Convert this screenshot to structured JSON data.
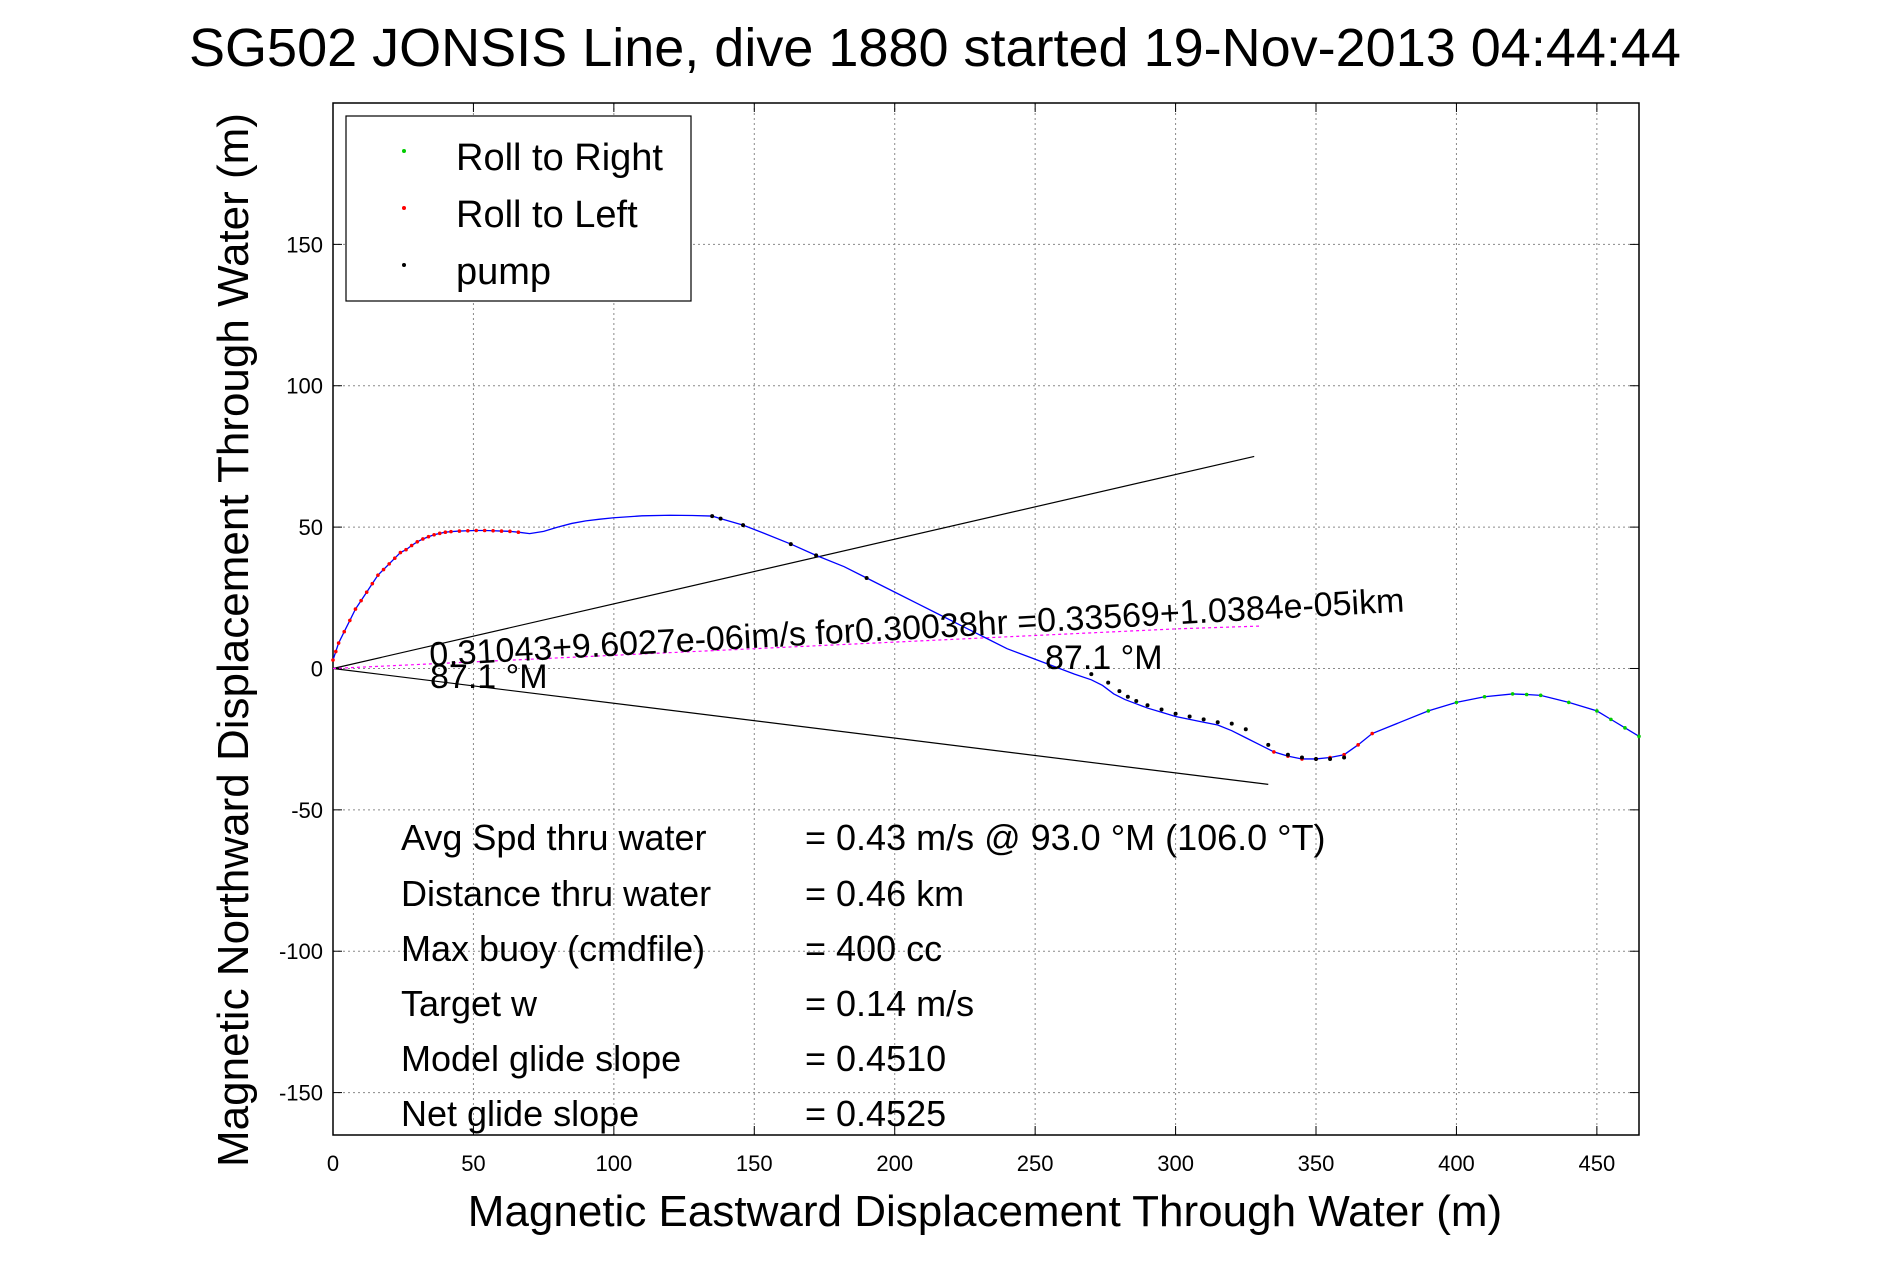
{
  "chart_data": {
    "type": "line",
    "title": "SG502 JONSIS Line, dive 1880 started 19-Nov-2013 04:44:44",
    "xlabel": "Magnetic Eastward Displacement Through Water (m)",
    "ylabel": "Magnetic Northward Displacement Through Water (m)",
    "xlim": [
      0,
      465
    ],
    "ylim": [
      -165,
      200
    ],
    "xticks": [
      0,
      50,
      100,
      150,
      200,
      250,
      300,
      350,
      400,
      450
    ],
    "yticks": [
      -150,
      -100,
      -50,
      0,
      50,
      100,
      150
    ],
    "grid": true,
    "legend": {
      "placement": "top-left",
      "entries": [
        {
          "label": "Roll to Right",
          "color": "#00cc00"
        },
        {
          "label": "Roll to Left",
          "color": "#ff0000"
        },
        {
          "label": "pump",
          "color": "#000000"
        }
      ]
    },
    "track": {
      "name": "",
      "color": "#0000ff",
      "x": [
        0,
        1,
        2,
        4,
        6,
        8,
        10,
        12,
        14,
        16,
        18,
        20,
        22,
        24,
        26,
        28,
        30,
        32,
        34,
        36,
        38,
        40,
        42,
        45,
        48,
        51,
        54,
        57,
        60,
        63,
        66,
        70,
        75,
        80,
        85,
        90,
        95,
        100,
        110,
        120,
        128,
        135,
        138,
        146,
        153,
        163,
        172,
        182,
        190,
        200,
        208,
        216,
        224,
        232,
        240,
        248,
        256,
        264,
        270,
        274,
        278,
        282,
        286,
        290,
        295,
        300,
        305,
        310,
        315,
        320,
        325,
        330,
        335,
        340,
        345,
        350,
        355,
        360,
        365,
        370,
        380,
        390,
        400,
        410,
        420,
        425,
        430,
        440,
        450,
        455,
        460,
        465
      ],
      "y": [
        3,
        6,
        9,
        13,
        17,
        21,
        24,
        27,
        30,
        33,
        35,
        37,
        39,
        41,
        42,
        43.5,
        44.8,
        45.8,
        46.6,
        47.3,
        47.8,
        48.2,
        48.4,
        48.6,
        48.7,
        48.8,
        48.8,
        48.7,
        48.6,
        48.5,
        48.2,
        47.7,
        48.5,
        50,
        51.3,
        52.2,
        52.8,
        53.3,
        54,
        54.2,
        54.1,
        53.9,
        53,
        50.7,
        48,
        44,
        40,
        36,
        32,
        27,
        23,
        19,
        15,
        11,
        7,
        4,
        1,
        -2,
        -4,
        -6,
        -9,
        -11,
        -12.5,
        -14,
        -15.5,
        -17,
        -18,
        -19,
        -20,
        -22,
        -24.5,
        -27,
        -29.5,
        -31,
        -32,
        -32,
        -31.5,
        -30.5,
        -27,
        -23,
        -19,
        -15,
        -12,
        -10,
        -9,
        -9.2,
        -9.5,
        -12,
        -15,
        -18,
        -21,
        -24
      ]
    },
    "pump_x": [
      135,
      138,
      146,
      163,
      172,
      190,
      270,
      276,
      280,
      283,
      286,
      290,
      295,
      300,
      305,
      310,
      315,
      320,
      325,
      333,
      340,
      345,
      350,
      355,
      360
    ],
    "pump_y": [
      53.9,
      53,
      50.7,
      44,
      40,
      32,
      -2,
      -5,
      -8,
      -10,
      -11.5,
      -13,
      -14.5,
      -16,
      -17,
      -18,
      -19,
      -19.5,
      -21.5,
      -27,
      -30.5,
      -31.5,
      -32,
      -32,
      -31.5
    ],
    "heading_line_1": {
      "x": [
        0,
        328
      ],
      "y": [
        0,
        75
      ]
    },
    "heading_line_2": {
      "x": [
        0,
        333
      ],
      "y": [
        0,
        -41
      ]
    },
    "fit_line": {
      "x": [
        0,
        150,
        300,
        330
      ],
      "y": [
        0,
        7,
        14,
        15
      ]
    },
    "left_roll_range": [
      0,
      66,
      335,
      370
    ],
    "right_roll_range": [
      390,
      465
    ],
    "annotations": {
      "fit_label_1": "0.31043+9.6027e-06im/s for0.30038hr =0.33569+1.0384e-05ikm",
      "heading_label_1": "87.1 °M",
      "heading_label_2": "87.1 °M"
    },
    "stats": [
      {
        "label": "Avg Spd thru water",
        "value": "=  0.43 m/s @  93.0 °M (106.0 °T)"
      },
      {
        "label": "Distance thru water",
        "value": "=  0.46 km"
      },
      {
        "label": "Max buoy (cmdfile)",
        "value": "= 400 cc"
      },
      {
        "label": "Target w",
        "value": "= 0.14 m/s"
      },
      {
        "label": "Model glide slope",
        "value": "= 0.4510"
      },
      {
        "label": "Net glide slope",
        "value": "= 0.4525"
      }
    ]
  }
}
